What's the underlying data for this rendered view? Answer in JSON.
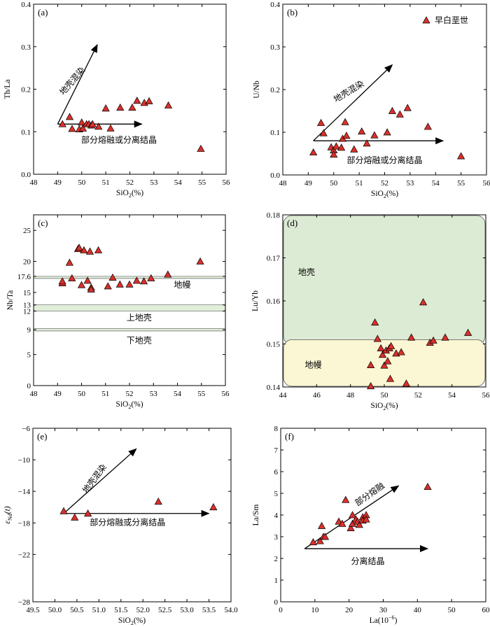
{
  "colors": {
    "marker_fill": "#d9302b",
    "green_region": "#dcebd3",
    "yellow_region": "#fbf6d3",
    "band_green": "#e1efda"
  },
  "legend": {
    "label": "早白垩世"
  },
  "chart_data": [
    {
      "panel": "(a)",
      "type": "scatter",
      "xlabel": "SiO2(%)",
      "ylabel": "Th/La",
      "xlim": [
        48,
        56
      ],
      "ylim": [
        0,
        0.4
      ],
      "xticks": [
        "48",
        "49",
        "50",
        "51",
        "52",
        "53",
        "54",
        "55",
        "56"
      ],
      "yticks": [
        "0.0",
        "0.1",
        "0.2",
        "0.3",
        "0.4"
      ],
      "x": [
        49.2,
        49.5,
        49.6,
        49.9,
        50.0,
        50.05,
        50.2,
        50.3,
        50.4,
        50.45,
        50.7,
        51.0,
        51.2,
        51.6,
        52.1,
        52.3,
        52.6,
        52.8,
        53.6,
        54.95
      ],
      "y": [
        0.118,
        0.135,
        0.107,
        0.106,
        0.122,
        0.108,
        0.118,
        0.118,
        0.115,
        0.118,
        0.112,
        0.155,
        0.108,
        0.157,
        0.157,
        0.173,
        0.168,
        0.172,
        0.162,
        0.06
      ],
      "annotations": [
        "地壳混染",
        "部分熔融或分离结晶"
      ]
    },
    {
      "panel": "(b)",
      "type": "scatter",
      "xlabel": "SiO2(%)",
      "ylabel": "U/Nb",
      "xlim": [
        48,
        56
      ],
      "ylim": [
        0,
        0.4
      ],
      "xticks": [
        "48",
        "49",
        "50",
        "51",
        "52",
        "53",
        "54",
        "55",
        "56"
      ],
      "yticks": [
        "0.0",
        "0.1",
        "0.2",
        "0.3",
        "0.4"
      ],
      "x": [
        49.2,
        49.5,
        49.6,
        49.9,
        50.0,
        50.0,
        50.1,
        50.3,
        50.35,
        50.45,
        50.5,
        50.8,
        51.1,
        51.3,
        51.6,
        52.1,
        52.3,
        52.6,
        52.9,
        53.7,
        55.0
      ],
      "y": [
        0.053,
        0.122,
        0.098,
        0.065,
        0.058,
        0.048,
        0.067,
        0.064,
        0.085,
        0.124,
        0.092,
        0.06,
        0.102,
        0.074,
        0.093,
        0.1,
        0.15,
        0.142,
        0.157,
        0.113,
        0.044
      ],
      "annotations": [
        "地壳混染",
        "部分熔融或分离结晶"
      ]
    },
    {
      "panel": "(c)",
      "type": "scatter",
      "xlabel": "SiO2(%)",
      "ylabel": "Nb/Ta",
      "xlim": [
        48,
        56
      ],
      "ylim": [
        0,
        27.5
      ],
      "xticks": [
        "48",
        "49",
        "50",
        "51",
        "52",
        "53",
        "54",
        "55",
        "56"
      ],
      "yticks": [
        "0",
        "5",
        "9",
        "12",
        "13",
        "15",
        "17.6",
        "20",
        "25"
      ],
      "bands": [
        {
          "label": "地幔",
          "range": [
            17.25,
            17.6
          ]
        },
        {
          "label": "上地壳",
          "range": [
            12,
            13
          ]
        },
        {
          "label": "下地壳",
          "range": [
            8.8,
            9.2
          ]
        }
      ],
      "x": [
        49.2,
        49.2,
        49.5,
        49.6,
        49.85,
        49.9,
        50.0,
        50.1,
        50.25,
        50.35,
        50.4,
        50.4,
        50.7,
        51.1,
        51.3,
        51.6,
        52.0,
        52.3,
        52.6,
        52.9,
        53.6,
        54.95
      ],
      "y": [
        16.5,
        16.8,
        19.8,
        17.3,
        22.0,
        22.2,
        16.2,
        21.8,
        16.9,
        21.6,
        15.8,
        15.5,
        21.8,
        16.0,
        17.4,
        16.3,
        16.3,
        16.9,
        16.8,
        17.3,
        17.9,
        20.0
      ]
    },
    {
      "panel": "(d)",
      "type": "scatter",
      "xlabel": "SiO2(%)",
      "ylabel": "Lu/Yb",
      "xlim": [
        44,
        56
      ],
      "ylim": [
        0.14,
        0.18
      ],
      "xticks": [
        "44",
        "46",
        "48",
        "50",
        "52",
        "54",
        "56"
      ],
      "yticks": [
        "0.14",
        "0.15",
        "0.16",
        "0.17",
        "0.18"
      ],
      "regions": [
        {
          "label": "地壳",
          "range": [
            0.15,
            0.18
          ]
        },
        {
          "label": "地幔",
          "range": [
            0.14,
            0.151
          ]
        }
      ],
      "x": [
        49.2,
        49.2,
        49.45,
        49.6,
        49.8,
        49.9,
        50.0,
        50.1,
        50.2,
        50.3,
        50.35,
        50.4,
        50.7,
        51.0,
        51.3,
        51.6,
        52.3,
        52.7,
        52.9,
        53.6,
        54.95
      ],
      "y": [
        0.1402,
        0.1451,
        0.155,
        0.1512,
        0.149,
        0.1475,
        0.145,
        0.1485,
        0.146,
        0.149,
        0.1419,
        0.1495,
        0.1478,
        0.1481,
        0.1408,
        0.1515,
        0.1597,
        0.1503,
        0.1508,
        0.1515,
        0.1526
      ]
    },
    {
      "panel": "(e)",
      "type": "scatter",
      "xlabel": "SiO2(%)",
      "ylabel": "εNd(t)",
      "ylabel_parts": {
        "base": "ε",
        "sub": "Nd",
        "suffix": "(t)"
      },
      "xlim": [
        49.5,
        54.0
      ],
      "ylim": [
        -28,
        -6
      ],
      "xticks": [
        "49.5",
        "50.0",
        "50.5",
        "51.0",
        "51.5",
        "52.0",
        "52.5",
        "53.0",
        "53.5",
        "54.0"
      ],
      "yticks": [
        "-6",
        "-10",
        "-14",
        "-18",
        "-22",
        "-28"
      ],
      "x": [
        50.2,
        50.45,
        50.75,
        52.35,
        53.6
      ],
      "y": [
        -16.5,
        -17.3,
        -16.8,
        -15.3,
        -16.0
      ],
      "annotations": [
        "地壳混染",
        "部分熔融或分离结晶"
      ]
    },
    {
      "panel": "(f)",
      "type": "scatter",
      "xlabel": "La(10⁻⁶)",
      "ylabel": "La/Sm",
      "xlim": [
        0,
        60
      ],
      "ylim": [
        0,
        8
      ],
      "xticks": [
        "0",
        "10",
        "20",
        "30",
        "40",
        "50",
        "60"
      ],
      "yticks": [
        "0",
        "1",
        "2",
        "3",
        "4",
        "5",
        "6",
        "7",
        "8"
      ],
      "x": [
        9.5,
        11.5,
        12.0,
        12.5,
        13.0,
        17.0,
        18.0,
        19.0,
        20.5,
        21.0,
        21.0,
        22.0,
        22.5,
        23.0,
        24.0,
        24.0,
        25.0,
        25.0,
        43.0
      ],
      "y": [
        2.75,
        2.8,
        3.5,
        3.0,
        3.0,
        3.7,
        3.6,
        4.7,
        3.4,
        3.6,
        4.0,
        3.8,
        3.7,
        3.55,
        3.9,
        3.75,
        4.0,
        3.8,
        5.3
      ],
      "annotations": [
        "部分熔融",
        "分离结晶"
      ]
    }
  ]
}
